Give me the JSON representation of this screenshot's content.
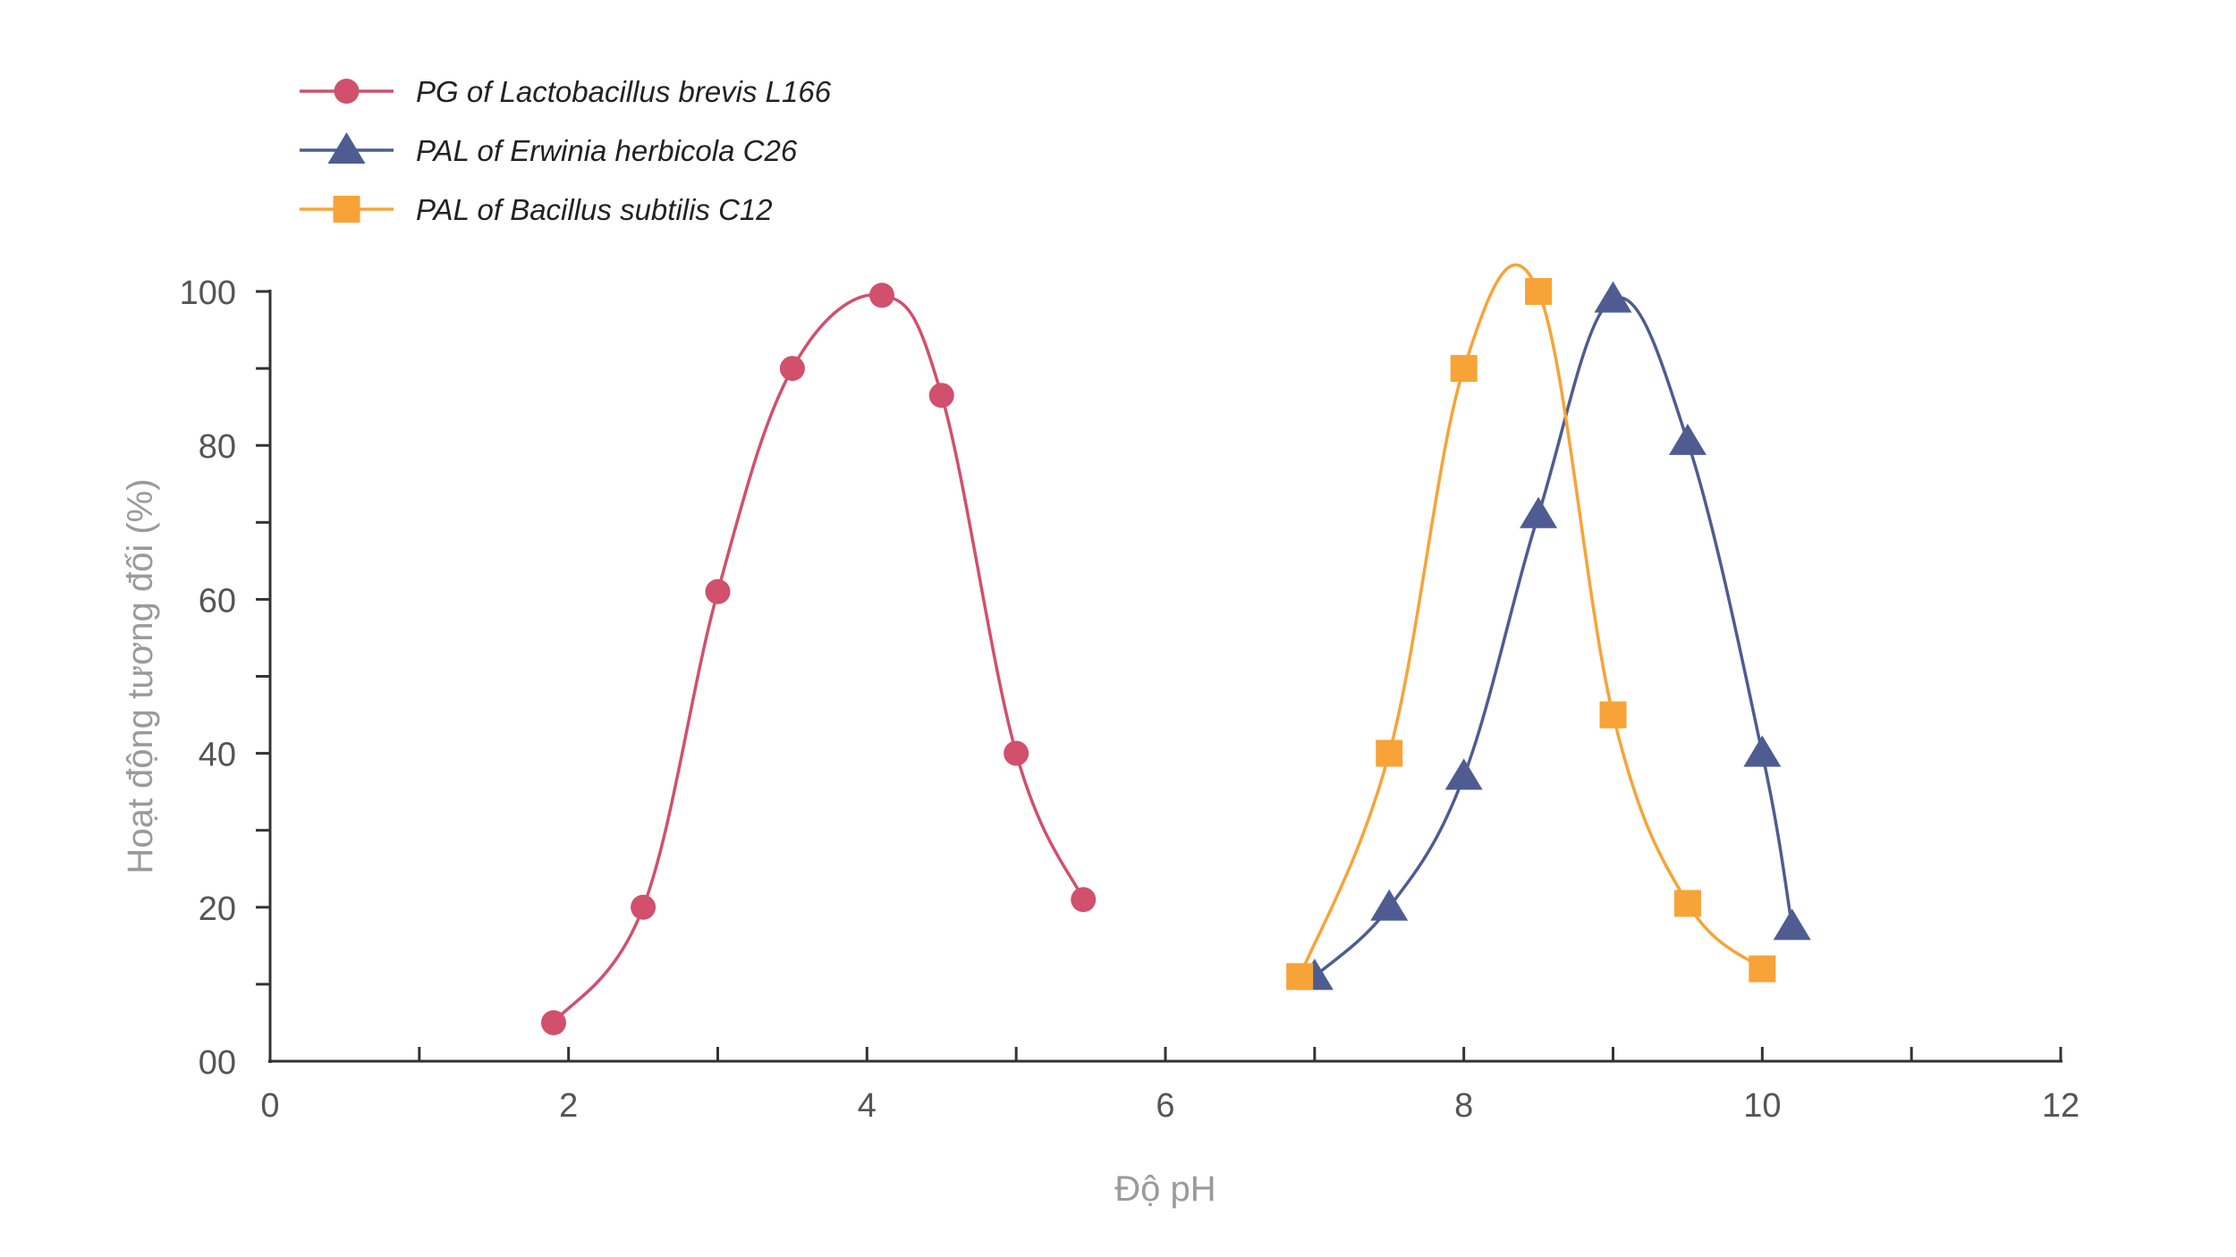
{
  "chart_data": {
    "type": "line",
    "xlabel": "Độ pH",
    "ylabel": "Hoạt động tương đối (%)",
    "xlim": [
      0,
      12
    ],
    "ylim": [
      0,
      100
    ],
    "x_ticks": [
      "0",
      "2",
      "4",
      "6",
      "8",
      "10",
      "12"
    ],
    "x_tick_values": [
      0,
      2,
      4,
      6,
      8,
      10,
      12
    ],
    "x_minor_ticks": [
      1,
      3,
      5,
      7,
      9,
      11
    ],
    "y_ticks": [
      "00",
      "20",
      "40",
      "60",
      "80",
      "100"
    ],
    "y_tick_values": [
      0,
      20,
      40,
      60,
      80,
      100
    ],
    "y_minor_ticks": [
      10,
      30,
      50,
      70,
      90
    ],
    "grid": false,
    "legend_position": "top-left",
    "series": [
      {
        "name": "PG of Lactobacillus brevis L166",
        "marker": "circle",
        "color": "#d1506b",
        "points": [
          [
            1.9,
            5
          ],
          [
            2.5,
            20
          ],
          [
            3.0,
            61
          ],
          [
            3.5,
            90
          ],
          [
            4.1,
            99.5
          ],
          [
            4.5,
            86.5
          ],
          [
            5.0,
            40
          ],
          [
            5.45,
            21
          ]
        ]
      },
      {
        "name": "PAL of Erwinia herbicola C26",
        "marker": "triangle",
        "color": "#4e5c91",
        "points": [
          [
            7.0,
            11
          ],
          [
            7.5,
            20
          ],
          [
            8.0,
            37
          ],
          [
            8.5,
            71
          ],
          [
            9.0,
            99
          ],
          [
            9.5,
            80.5
          ],
          [
            10.0,
            40
          ],
          [
            10.2,
            17.5
          ]
        ]
      },
      {
        "name": "PAL of Bacillus subtilis C12",
        "marker": "square",
        "color": "#f8a337",
        "points": [
          [
            6.9,
            11
          ],
          [
            7.5,
            40
          ],
          [
            8.0,
            90
          ],
          [
            8.5,
            100
          ],
          [
            9.0,
            45
          ],
          [
            9.5,
            20.5
          ],
          [
            10.0,
            12
          ]
        ]
      }
    ]
  }
}
